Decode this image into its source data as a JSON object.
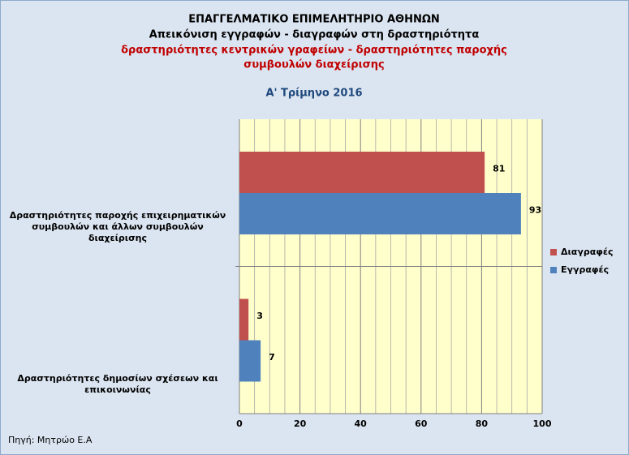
{
  "chart_data": {
    "type": "hbar",
    "title": [
      "ΕΠΑΓΓΕΛΜΑΤΙΚΟ ΕΠΙΜΕΛΗΤΗΡΙΟ ΑΘΗΝΩΝ",
      "Απεικόνιση εγγραφών - διαγραφών στη  δραστηριότητα"
    ],
    "subtitle": [
      "δραστηριότητες κεντρικών γραφείων - δραστηριότητες παροχής",
      "συμβουλών διαχείρισης"
    ],
    "period": "Α' Τρίμηνο 2016",
    "source": "Πηγή: Μητρώο Ε.Α",
    "categories": [
      "Δραστηριότητες παροχής επιχειρηματικών συμβουλών και άλλων συμβουλών διαχείρισης",
      "Δραστηριότητες δημοσίων σχέσεων και επικοινωνίας"
    ],
    "series": [
      {
        "name": "Διαγραφές",
        "color": "#c0504d",
        "values": [
          81,
          3
        ]
      },
      {
        "name": "Εγγραφές",
        "color": "#4f81bd",
        "values": [
          93,
          7
        ]
      }
    ],
    "xlim": [
      0,
      100
    ],
    "xticks": [
      0,
      20,
      40,
      60,
      80,
      100
    ],
    "minor_xticks": [
      5,
      10,
      15,
      25,
      30,
      35,
      45,
      50,
      55,
      65,
      70,
      75,
      85,
      90,
      95
    ],
    "grid": true,
    "legend": "right"
  }
}
